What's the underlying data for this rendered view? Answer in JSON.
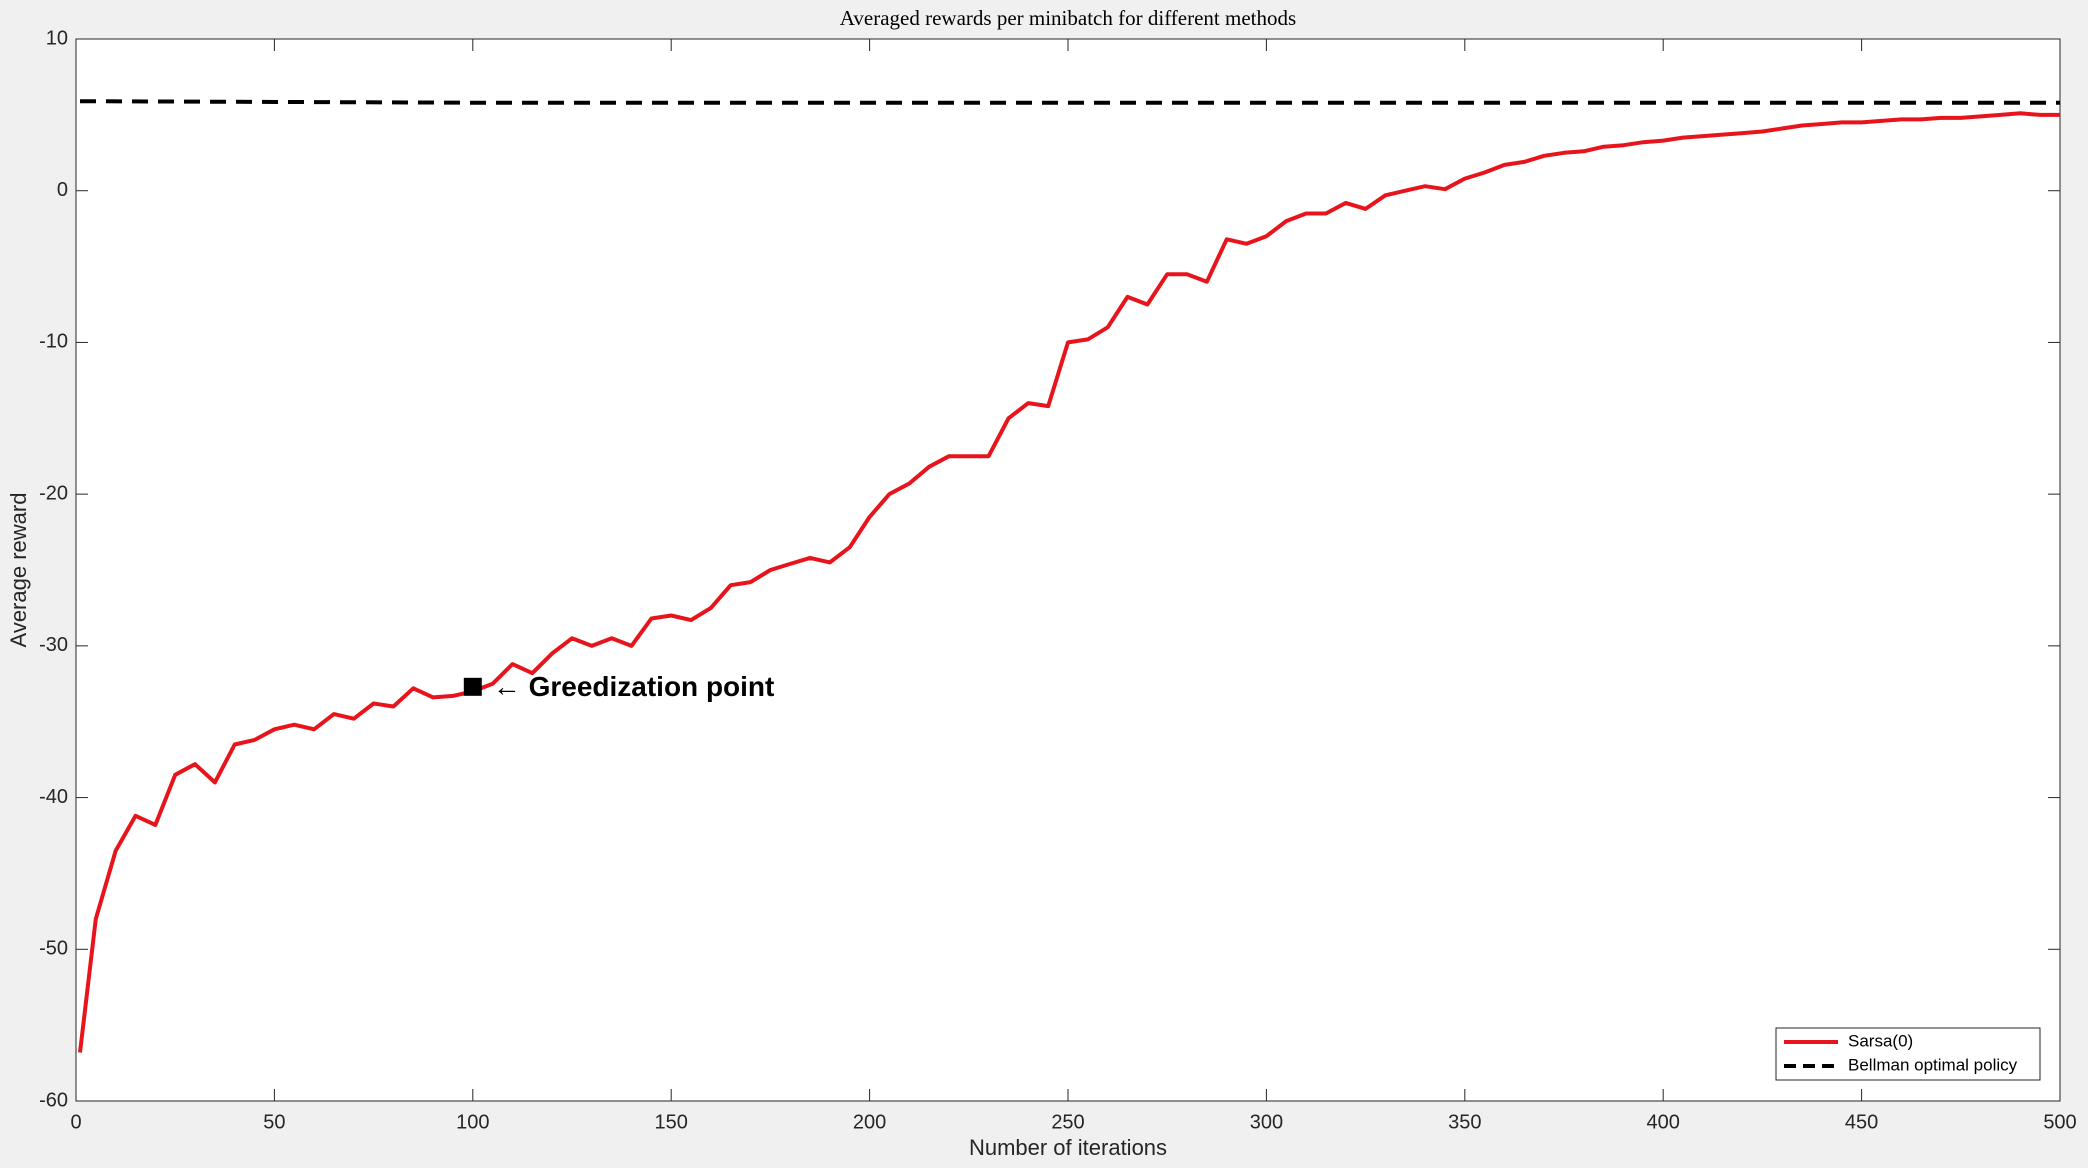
{
  "chart_data": {
    "type": "line",
    "title": "Averaged rewards per minibatch for different methods",
    "xlabel": "Number of iterations",
    "ylabel": "Average reward",
    "x": [
      1,
      5,
      10,
      15,
      20,
      25,
      30,
      35,
      40,
      45,
      50,
      55,
      60,
      65,
      70,
      75,
      80,
      85,
      90,
      95,
      100,
      105,
      110,
      115,
      120,
      125,
      130,
      135,
      140,
      145,
      150,
      155,
      160,
      165,
      170,
      175,
      180,
      185,
      190,
      195,
      200,
      205,
      210,
      215,
      220,
      225,
      230,
      235,
      240,
      245,
      250,
      255,
      260,
      265,
      270,
      275,
      280,
      285,
      290,
      295,
      300,
      305,
      310,
      315,
      320,
      325,
      330,
      335,
      340,
      345,
      350,
      355,
      360,
      365,
      370,
      375,
      380,
      385,
      390,
      395,
      400,
      405,
      410,
      415,
      420,
      425,
      430,
      435,
      440,
      445,
      450,
      455,
      460,
      465,
      470,
      475,
      480,
      485,
      490,
      495,
      500
    ],
    "series": [
      {
        "name": "Sarsa(0)",
        "color": "#e8141c",
        "dash": false,
        "values": [
          -56.8,
          -48,
          -43.5,
          -41.2,
          -41.8,
          -38.5,
          -37.8,
          -39,
          -36.5,
          -36.2,
          -35.5,
          -35.2,
          -35.5,
          -34.5,
          -34.8,
          -33.8,
          -34,
          -32.8,
          -33.4,
          -33.3,
          -33,
          -32.5,
          -31.2,
          -31.8,
          -30.5,
          -29.5,
          -30,
          -29.5,
          -30,
          -28.2,
          -28,
          -28.3,
          -27.5,
          -26,
          -25.8,
          -25,
          -24.6,
          -24.2,
          -24.5,
          -23.5,
          -21.5,
          -20,
          -19.3,
          -18.2,
          -17.5,
          -17.5,
          -17.5,
          -15,
          -14,
          -14.2,
          -10,
          -9.8,
          -9,
          -7,
          -7.5,
          -5.5,
          -5.5,
          -6,
          -3.2,
          -3.5,
          -3,
          -2,
          -1.5,
          -1.5,
          -0.8,
          -1.2,
          -0.3,
          0,
          0.3,
          0.1,
          0.8,
          1.2,
          1.7,
          1.9,
          2.3,
          2.5,
          2.6,
          2.9,
          3.0,
          3.2,
          3.3,
          3.5,
          3.6,
          3.7,
          3.8,
          3.9,
          4.1,
          4.3,
          4.4,
          4.5,
          4.5,
          4.6,
          4.7,
          4.7,
          4.8,
          4.8,
          4.9,
          5.0,
          5.1,
          5.0,
          5.0
        ]
      },
      {
        "name": "Bellman optimal policy",
        "color": "#000000",
        "dash": true,
        "x": [
          1,
          100,
          200,
          300,
          400,
          500
        ],
        "values": [
          5.9,
          5.8,
          5.8,
          5.8,
          5.8,
          5.8
        ]
      }
    ],
    "annotations": [
      {
        "text": "← Greedization point",
        "x": 100,
        "y": -32.7
      }
    ],
    "xlim": [
      0,
      500
    ],
    "xticks": [
      0,
      50,
      100,
      150,
      200,
      250,
      300,
      350,
      400,
      450,
      500
    ],
    "ylim": [
      -60,
      10
    ],
    "yticks": [
      -60,
      -50,
      -40,
      -30,
      -20,
      -10,
      0,
      10
    ],
    "grid": false,
    "legend": "lower right"
  }
}
